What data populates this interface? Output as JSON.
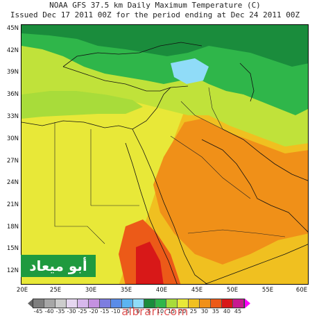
{
  "header": {
    "line1": "NOAA GFS 37.5 km Daily Maximum Temperature (C)",
    "line2": "Issued Dec 17 2011 00Z for the period ending at Dec 24 2011 00Z"
  },
  "map": {
    "lat_labels": [
      "45N",
      "42N",
      "39N",
      "36N",
      "33N",
      "30N",
      "27N",
      "24N",
      "21N",
      "18N",
      "15N",
      "12N"
    ],
    "lon_labels": [
      "20E",
      "25E",
      "30E",
      "35E",
      "40E",
      "45E",
      "50E",
      "55E",
      "60E"
    ],
    "lat_range": [
      9.5,
      45
    ],
    "lon_range": [
      20,
      60
    ]
  },
  "colorbar": {
    "labels": [
      "-45",
      "-40",
      "-35",
      "-30",
      "-25",
      "-20",
      "-15",
      "-10",
      "-5",
      "0",
      "5",
      "10",
      "15",
      "20",
      "25",
      "30",
      "35",
      "40",
      "45"
    ],
    "colors": [
      "#7f7f7f",
      "#a6a6a6",
      "#cccccc",
      "#e6d7f0",
      "#d7b8ec",
      "#c491e0",
      "#7d7de0",
      "#5a8ce8",
      "#5cb4f0",
      "#90dcf8",
      "#1a8c3c",
      "#2fb64a",
      "#a8dc3a",
      "#e8e838",
      "#f0c020",
      "#f09018",
      "#ec5a18",
      "#d81818",
      "#c81890",
      "#ff00ff"
    ]
  },
  "watermark": {
    "text": "أبو ميعاد"
  },
  "footer": {
    "site": "albrari.com"
  }
}
